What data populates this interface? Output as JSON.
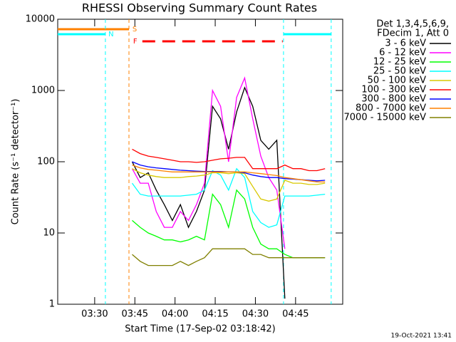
{
  "chart_data": {
    "type": "line",
    "title": "RHESSI Observing Summary Count Rates",
    "xlabel": "Start Time (17-Sep-02 03:18:42)",
    "ylabel": "Count Rate (s⁻¹ detector⁻¹)",
    "footer": "19-Oct-2021 13:41",
    "legend_header": [
      "Det 1,3,4,5,6,9,",
      "FDecim 1, Att 0"
    ],
    "log_y": true,
    "xlim": [
      196.2,
      302.6
    ],
    "ylim": [
      1,
      10000
    ],
    "yticks": [
      1,
      10,
      100,
      1000,
      10000
    ],
    "xticks": [
      {
        "value": 210,
        "label": "03:30"
      },
      {
        "value": 225,
        "label": "03:45"
      },
      {
        "value": 240,
        "label": "04:00"
      },
      {
        "value": 255,
        "label": "04:15"
      },
      {
        "value": 270,
        "label": "04:30"
      },
      {
        "value": 285,
        "label": "04:45"
      }
    ],
    "x": [
      224,
      227,
      230,
      233,
      236,
      239,
      242,
      245,
      248,
      251,
      254,
      257,
      260,
      263,
      266,
      269,
      272,
      275,
      278,
      281,
      284,
      287,
      290,
      293,
      296
    ],
    "series": [
      {
        "name": "3 - 6 keV",
        "color": "#000000",
        "values": [
          100,
          60,
          70,
          40,
          25,
          15,
          25,
          12,
          20,
          40,
          600,
          400,
          150,
          500,
          1100,
          600,
          200,
          150,
          200,
          1.2,
          null,
          null,
          null,
          null,
          null
        ]
      },
      {
        "name": "6 - 12 keV",
        "color": "#ff00ff",
        "values": [
          80,
          50,
          50,
          20,
          12,
          12,
          20,
          15,
          25,
          50,
          1000,
          600,
          100,
          800,
          1500,
          400,
          120,
          60,
          40,
          6,
          null,
          null,
          null,
          null,
          null
        ]
      },
      {
        "name": "12 - 25 keV",
        "color": "#00ff00",
        "values": [
          15,
          12,
          10,
          9,
          8,
          8,
          7.5,
          8,
          9,
          8,
          35,
          25,
          12,
          40,
          30,
          12,
          7,
          6,
          6,
          5,
          4.5,
          4.5,
          4.5,
          4.5,
          4.5
        ]
      },
      {
        "name": "25 - 50 keV",
        "color": "#00ffff",
        "values": [
          50,
          35,
          33,
          33,
          33,
          33,
          33,
          34,
          35,
          40,
          75,
          65,
          40,
          80,
          60,
          20,
          14,
          12,
          13,
          33,
          33,
          33,
          33,
          34,
          35
        ]
      },
      {
        "name": "50 - 100 keV",
        "color": "#d8c800",
        "values": [
          80,
          70,
          65,
          62,
          60,
          60,
          60,
          62,
          63,
          65,
          70,
          70,
          68,
          70,
          68,
          45,
          30,
          28,
          30,
          55,
          50,
          50,
          48,
          48,
          50
        ]
      },
      {
        "name": "100 - 300 keV",
        "color": "#ff0000",
        "values": [
          150,
          130,
          120,
          115,
          110,
          105,
          100,
          100,
          98,
          100,
          105,
          110,
          112,
          115,
          115,
          80,
          80,
          80,
          80,
          90,
          80,
          80,
          75,
          75,
          80
        ]
      },
      {
        "name": "300 - 800 keV",
        "color": "#0000ff",
        "values": [
          100,
          90,
          85,
          82,
          80,
          78,
          76,
          75,
          74,
          73,
          73,
          73,
          72,
          72,
          70,
          65,
          62,
          60,
          60,
          58,
          57,
          56,
          55,
          54,
          55
        ]
      },
      {
        "name": "800 - 7000 keV",
        "color": "#ff8000",
        "values": [
          90,
          82,
          78,
          76,
          74,
          72,
          72,
          72,
          72,
          72,
          72,
          72,
          72,
          72,
          72,
          70,
          68,
          66,
          64,
          60,
          58,
          56,
          54,
          52,
          52
        ]
      },
      {
        "name": "7000 - 15000 keV",
        "color": "#808000",
        "values": [
          5,
          4,
          3.5,
          3.5,
          3.5,
          3.5,
          4,
          3.5,
          4,
          4.5,
          6,
          6,
          6,
          6,
          6,
          5,
          5,
          4.5,
          4.5,
          4.5,
          4.5,
          4.5,
          4.5,
          4.5,
          4.5
        ]
      }
    ],
    "flags": [
      {
        "label": "S",
        "color": "#ff8000",
        "dashed": false,
        "segments": [
          [
            196.2,
            222.8
          ]
        ]
      },
      {
        "label": "N",
        "color": "#00ffff",
        "dashed": false,
        "segments": [
          [
            196.2,
            214
          ],
          [
            280.5,
            298.3
          ]
        ]
      },
      {
        "label": "F",
        "color": "#ff0000",
        "dashed": true,
        "segments": [
          [
            227.8,
            280.2
          ]
        ]
      }
    ]
  }
}
